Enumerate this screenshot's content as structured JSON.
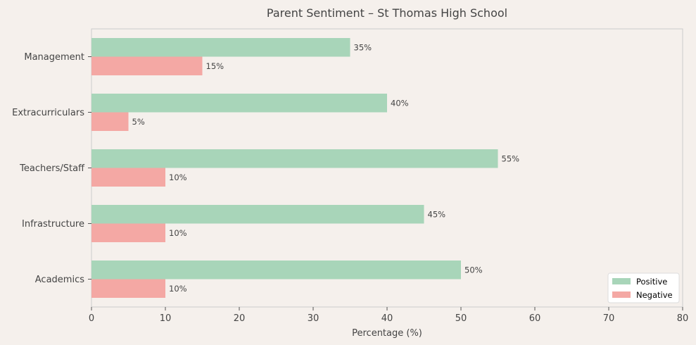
{
  "chart_data": {
    "type": "bar",
    "orientation": "horizontal",
    "title": "Parent Sentiment – St Thomas High School",
    "xlabel": "Percentage (%)",
    "ylabel": "",
    "categories": [
      "Management",
      "Extracurriculars",
      "Teachers/Staff",
      "Infrastructure",
      "Academics"
    ],
    "series": [
      {
        "name": "Positive",
        "values": [
          35,
          40,
          55,
          45,
          50
        ],
        "color": "#a8d5b9"
      },
      {
        "name": "Negative",
        "values": [
          15,
          5,
          10,
          10,
          10
        ],
        "color": "#f4a8a4"
      }
    ],
    "data_labels": {
      "Positive": [
        "35%",
        "40%",
        "55%",
        "45%",
        "50%"
      ],
      "Negative": [
        "15%",
        "5%",
        "10%",
        "10%",
        "10%"
      ]
    },
    "xlim": [
      0,
      80
    ],
    "xticks": [
      "0",
      "10",
      "20",
      "30",
      "40",
      "50",
      "60",
      "70",
      "80"
    ],
    "grid": false,
    "legend_position": "bottom-right",
    "background_color": "#f5f0ec",
    "plot_background_color": "#f5f0ec",
    "spine_color": "#cccccc"
  }
}
